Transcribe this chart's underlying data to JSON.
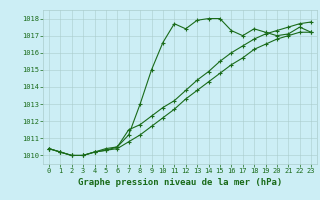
{
  "title": "Graphe pression niveau de la mer (hPa)",
  "background_color": "#cceef5",
  "grid_color": "#aacccc",
  "line_color": "#1a6b1a",
  "xlim": [
    -0.5,
    23.5
  ],
  "ylim": [
    1009.5,
    1018.5
  ],
  "yticks": [
    1010,
    1011,
    1012,
    1013,
    1014,
    1015,
    1016,
    1017,
    1018
  ],
  "xticks": [
    0,
    1,
    2,
    3,
    4,
    5,
    6,
    7,
    8,
    9,
    10,
    11,
    12,
    13,
    14,
    15,
    16,
    17,
    18,
    19,
    20,
    21,
    22,
    23
  ],
  "series1_x": [
    0,
    1,
    2,
    3,
    4,
    5,
    6,
    7,
    8,
    9,
    10,
    11,
    12,
    13,
    14,
    15,
    16,
    17,
    18,
    19,
    20,
    21,
    22,
    23
  ],
  "series1_y": [
    1010.4,
    1010.2,
    1010.0,
    1010.0,
    1010.2,
    1010.3,
    1010.5,
    1011.2,
    1013.0,
    1015.0,
    1016.6,
    1017.7,
    1017.4,
    1017.9,
    1018.0,
    1018.0,
    1017.3,
    1017.0,
    1017.4,
    1017.2,
    1017.0,
    1017.1,
    1017.5,
    1017.2
  ],
  "series2_x": [
    0,
    1,
    2,
    3,
    4,
    5,
    6,
    7,
    8,
    9,
    10,
    11,
    12,
    13,
    14,
    15,
    16,
    17,
    18,
    19,
    20,
    21,
    22,
    23
  ],
  "series2_y": [
    1010.4,
    1010.2,
    1010.0,
    1010.0,
    1010.2,
    1010.4,
    1010.5,
    1011.5,
    1011.8,
    1012.3,
    1012.8,
    1013.2,
    1013.8,
    1014.4,
    1014.9,
    1015.5,
    1016.0,
    1016.4,
    1016.8,
    1017.1,
    1017.3,
    1017.5,
    1017.7,
    1017.8
  ],
  "series3_x": [
    0,
    1,
    2,
    3,
    4,
    5,
    6,
    7,
    8,
    9,
    10,
    11,
    12,
    13,
    14,
    15,
    16,
    17,
    18,
    19,
    20,
    21,
    22,
    23
  ],
  "series3_y": [
    1010.4,
    1010.2,
    1010.0,
    1010.0,
    1010.2,
    1010.3,
    1010.4,
    1010.8,
    1011.2,
    1011.7,
    1012.2,
    1012.7,
    1013.3,
    1013.8,
    1014.3,
    1014.8,
    1015.3,
    1015.7,
    1016.2,
    1016.5,
    1016.8,
    1017.0,
    1017.2,
    1017.2
  ],
  "tick_fontsize": 5.0,
  "title_fontsize": 6.5,
  "marker_size": 3.0,
  "line_width": 0.8
}
